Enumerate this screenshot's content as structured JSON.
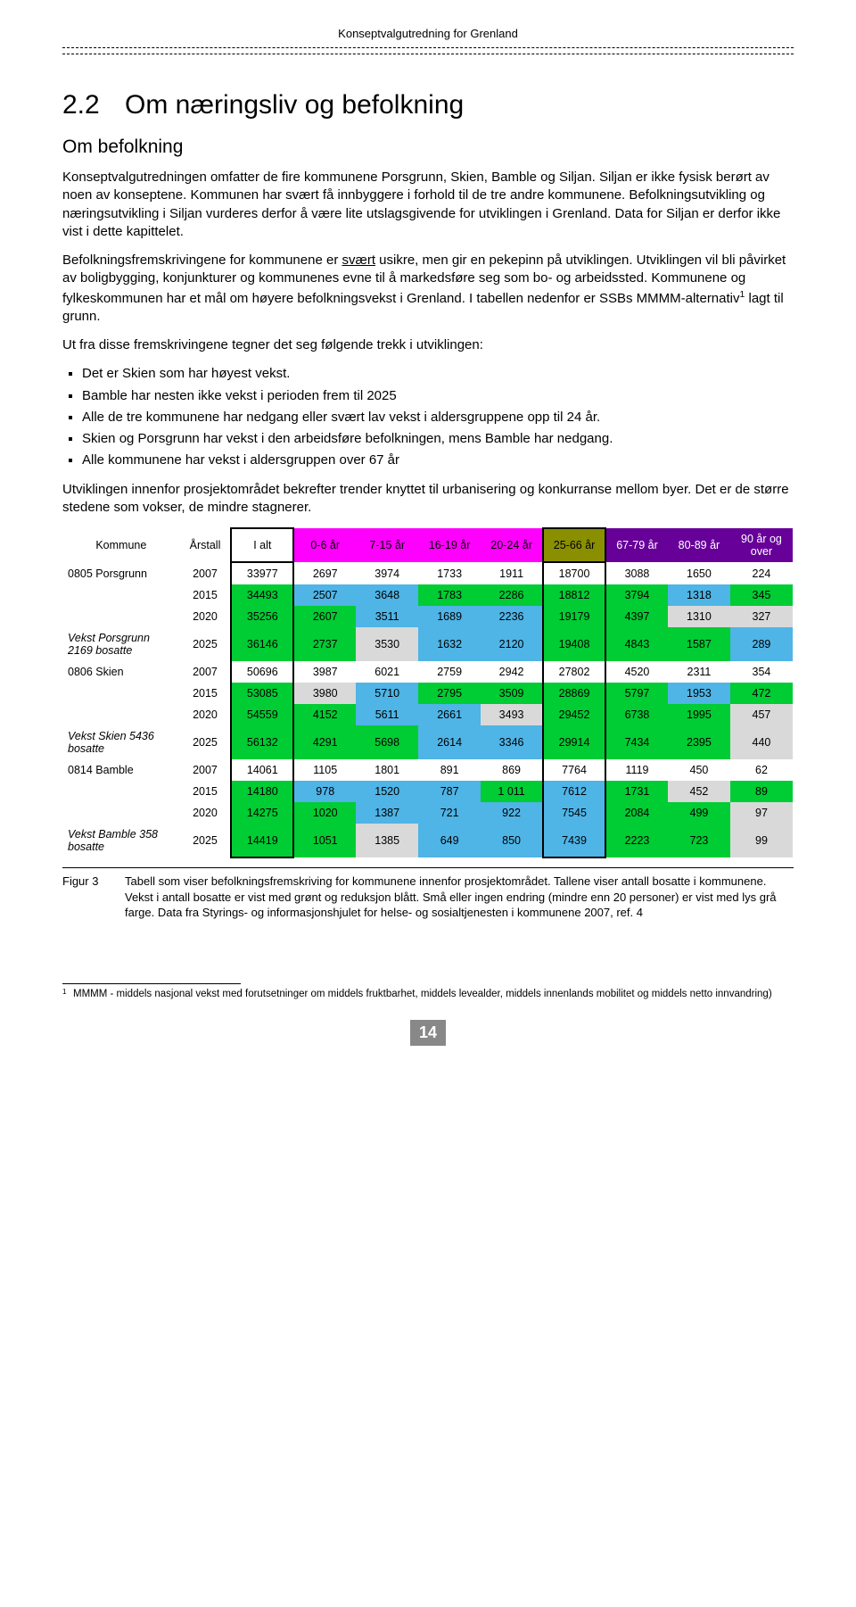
{
  "doc_header": "Konseptvalgutredning for Grenland",
  "section_number": "2.2",
  "section_title": "Om næringsliv og befolkning",
  "sub_title": "Om befolkning",
  "paragraphs": {
    "p1": "Konseptvalgutredningen omfatter de fire kommunene Porsgrunn, Skien, Bamble og Siljan. Siljan er ikke fysisk berørt av noen av konseptene. Kommunen har svært få innbyggere i forhold til de tre andre kommunene. Befolkningsutvikling og næringsutvikling i Siljan vurderes derfor å være lite utslagsgivende for utviklingen i Grenland. Data for Siljan er derfor ikke vist i dette kapittelet.",
    "p2a": "Befolkningsfremskrivingene for kommunene er ",
    "p2_underline": "svært",
    "p2b": " usikre, men gir en pekepinn på utviklingen. Utviklingen vil bli påvirket av boligbygging, konjunkturer og kommunenes evne til å markedsføre seg som bo- og arbeidssted. Kommunene og fylkeskommunen har et mål om høyere befolkningsvekst i Grenland. I tabellen nedenfor er SSBs MMMM-alternativ",
    "p2c": " lagt til grunn.",
    "p3": "Ut fra disse fremskrivingene tegner det seg følgende trekk i utviklingen:",
    "p4": "Utviklingen innenfor prosjektområdet bekrefter trender knyttet til urbanisering og konkurranse mellom byer. Det er de større stedene som vokser, de mindre stagnerer."
  },
  "bullets": [
    "Det er Skien som har høyest vekst.",
    "Bamble har nesten ikke vekst i perioden frem til 2025",
    "Alle de tre kommunene har nedgang eller svært lav vekst i aldersgruppene opp til 24 år.",
    "Skien og Porsgrunn har vekst i den arbeidsføre befolkningen, mens Bamble har nedgang.",
    "Alle kommunene har vekst i aldersgruppen over 67 år"
  ],
  "table": {
    "headers": [
      "Kommune",
      "Årstall",
      "I alt",
      "0-6 år",
      "7-15 år",
      "16-19 år",
      "20-24 år",
      "25-66 år",
      "67-79 år",
      "80-89 år",
      "90 år og over"
    ],
    "header_classes": [
      "",
      "",
      "hdr-white",
      "hdr-magenta",
      "hdr-magenta",
      "hdr-magenta",
      "hdr-magenta",
      "hdr-olive",
      "hdr-purple",
      "hdr-purple",
      "hdr-purple"
    ],
    "colwidths": [
      "16%",
      "7%",
      "8.5%",
      "8.5%",
      "8.5%",
      "8.5%",
      "8.5%",
      "8.5%",
      "8.5%",
      "8.5%",
      "8.5%"
    ],
    "groups": [
      {
        "label": "0805 Porsgrunn",
        "vekst_label": "Vekst Porsgrunn 2169 bosatte",
        "rows": [
          {
            "year": "2007",
            "cells": [
              "33977",
              "2697",
              "3974",
              "1733",
              "1911",
              "18700",
              "3088",
              "1650",
              "224"
            ],
            "classes": [
              "c-none",
              "c-none",
              "c-none",
              "c-none",
              "c-none",
              "c-none",
              "c-none",
              "c-none",
              "c-none"
            ]
          },
          {
            "year": "2015",
            "cells": [
              "34493",
              "2507",
              "3648",
              "1783",
              "2286",
              "18812",
              "3794",
              "1318",
              "345"
            ],
            "classes": [
              "c-green",
              "c-blue",
              "c-blue",
              "c-green",
              "c-green",
              "c-green",
              "c-green",
              "c-blue",
              "c-green"
            ]
          },
          {
            "year": "2020",
            "cells": [
              "35256",
              "2607",
              "3511",
              "1689",
              "2236",
              "19179",
              "4397",
              "1310",
              "327"
            ],
            "classes": [
              "c-green",
              "c-green",
              "c-blue",
              "c-blue",
              "c-blue",
              "c-green",
              "c-green",
              "c-gray",
              "c-gray"
            ]
          },
          {
            "year": "2025",
            "cells": [
              "36146",
              "2737",
              "3530",
              "1632",
              "2120",
              "19408",
              "4843",
              "1587",
              "289"
            ],
            "classes": [
              "c-green",
              "c-green",
              "c-gray",
              "c-blue",
              "c-blue",
              "c-green",
              "c-green",
              "c-green",
              "c-blue"
            ]
          }
        ]
      },
      {
        "label": "0806 Skien",
        "vekst_label": "Vekst Skien 5436 bosatte",
        "rows": [
          {
            "year": "2007",
            "cells": [
              "50696",
              "3987",
              "6021",
              "2759",
              "2942",
              "27802",
              "4520",
              "2311",
              "354"
            ],
            "classes": [
              "c-none",
              "c-none",
              "c-none",
              "c-none",
              "c-none",
              "c-none",
              "c-none",
              "c-none",
              "c-none"
            ]
          },
          {
            "year": "2015",
            "cells": [
              "53085",
              "3980",
              "5710",
              "2795",
              "3509",
              "28869",
              "5797",
              "1953",
              "472"
            ],
            "classes": [
              "c-green",
              "c-gray",
              "c-blue",
              "c-green",
              "c-green",
              "c-green",
              "c-green",
              "c-blue",
              "c-green"
            ]
          },
          {
            "year": "2020",
            "cells": [
              "54559",
              "4152",
              "5611",
              "2661",
              "3493",
              "29452",
              "6738",
              "1995",
              "457"
            ],
            "classes": [
              "c-green",
              "c-green",
              "c-blue",
              "c-blue",
              "c-gray",
              "c-green",
              "c-green",
              "c-green",
              "c-gray"
            ]
          },
          {
            "year": "2025",
            "cells": [
              "56132",
              "4291",
              "5698",
              "2614",
              "3346",
              "29914",
              "7434",
              "2395",
              "440"
            ],
            "classes": [
              "c-green",
              "c-green",
              "c-green",
              "c-blue",
              "c-blue",
              "c-green",
              "c-green",
              "c-green",
              "c-gray"
            ]
          }
        ]
      },
      {
        "label": "0814 Bamble",
        "vekst_label": "Vekst Bamble 358 bosatte",
        "rows": [
          {
            "year": "2007",
            "cells": [
              "14061",
              "1105",
              "1801",
              "891",
              "869",
              "7764",
              "1119",
              "450",
              "62"
            ],
            "classes": [
              "c-none",
              "c-none",
              "c-none",
              "c-none",
              "c-none",
              "c-none",
              "c-none",
              "c-none",
              "c-none"
            ]
          },
          {
            "year": "2015",
            "cells": [
              "14180",
              "978",
              "1520",
              "787",
              "1 011",
              "7612",
              "1731",
              "452",
              "89"
            ],
            "classes": [
              "c-green",
              "c-blue",
              "c-blue",
              "c-blue",
              "c-green",
              "c-blue",
              "c-green",
              "c-gray",
              "c-green"
            ]
          },
          {
            "year": "2020",
            "cells": [
              "14275",
              "1020",
              "1387",
              "721",
              "922",
              "7545",
              "2084",
              "499",
              "97"
            ],
            "classes": [
              "c-green",
              "c-green",
              "c-blue",
              "c-blue",
              "c-blue",
              "c-blue",
              "c-green",
              "c-green",
              "c-gray"
            ]
          },
          {
            "year": "2025",
            "cells": [
              "14419",
              "1051",
              "1385",
              "649",
              "850",
              "7439",
              "2223",
              "723",
              "99"
            ],
            "classes": [
              "c-green",
              "c-green",
              "c-gray",
              "c-blue",
              "c-blue",
              "c-blue",
              "c-green",
              "c-green",
              "c-gray"
            ]
          }
        ]
      }
    ]
  },
  "caption": {
    "fig": "Figur 3",
    "text": "Tabell som viser befolkningsfremskriving for kommunene innenfor prosjektområdet. Tallene viser antall bosatte i kommunene. Vekst i antall bosatte er vist med grønt og reduksjon blått. Små eller ingen endring (mindre enn 20 personer) er vist med lys grå farge. Data fra Styrings- og informasjonshjulet for helse- og sosialtjenesten i kommunene 2007, ref. 4"
  },
  "footnote": {
    "num": "1",
    "text": "MMMM - middels nasjonal vekst med forutsetninger om middels fruktbarhet, middels levealder, middels innenlands mobilitet og middels netto innvandring)"
  },
  "page_number": "14"
}
